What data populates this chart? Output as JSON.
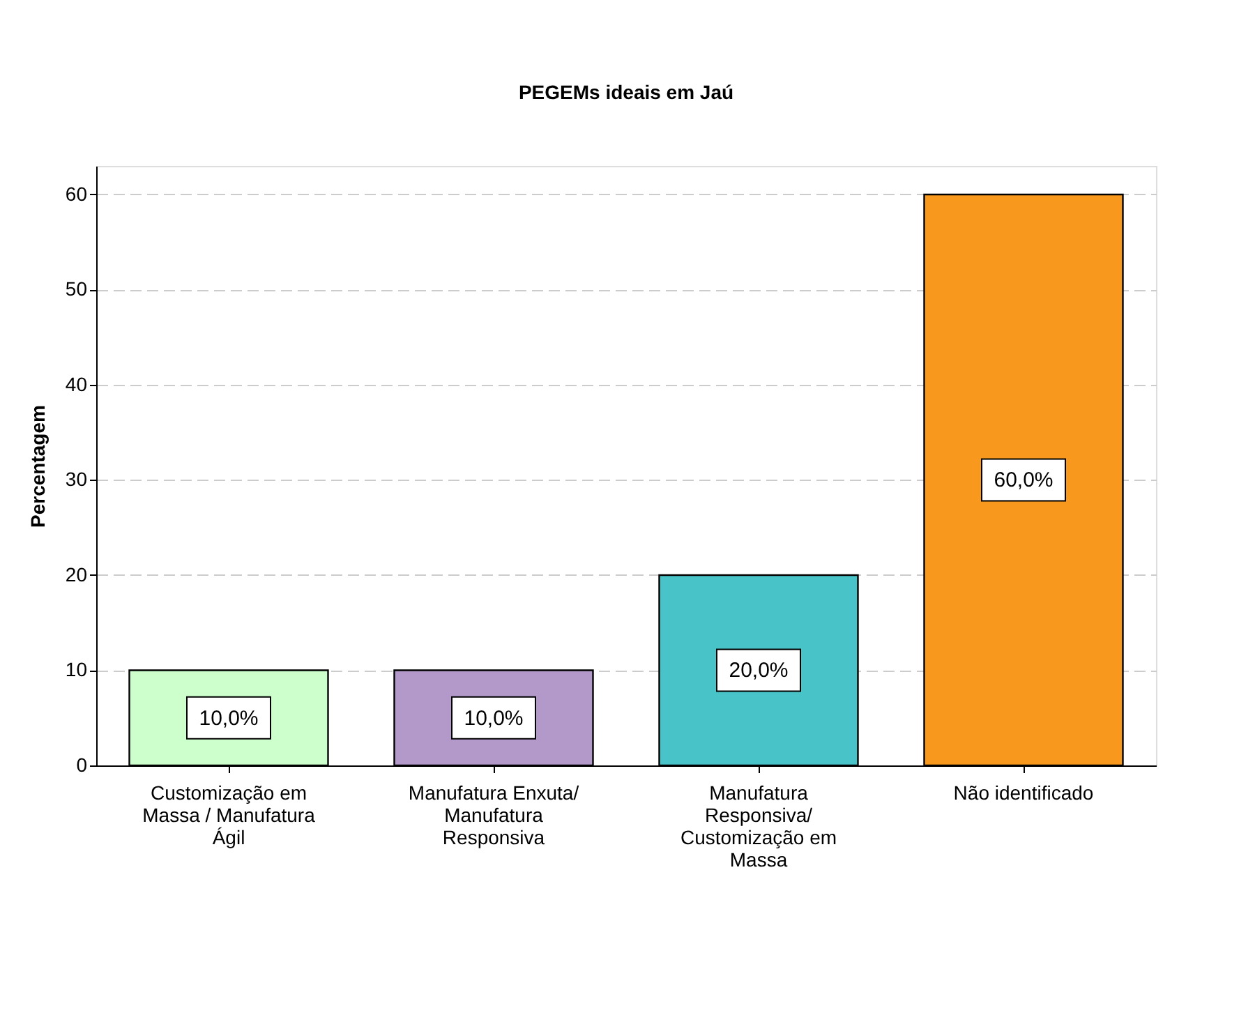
{
  "chart_data": {
    "type": "bar",
    "title": "PEGEMs ideais em Jaú",
    "ylabel": "Percentagem",
    "categories": [
      "Customização em Massa / Manufatura Ágil",
      "Manufatura Enxuta/ Manufatura Responsiva",
      "Manufatura Responsiva/ Customização em Massa",
      "Não identificado"
    ],
    "values": [
      10,
      10,
      20,
      60
    ],
    "colors": [
      "#ccffcc",
      "#b399c9",
      "#48c3c8",
      "#f8991d"
    ],
    "value_labels": [
      "10,0%",
      "10,0%",
      "20,0%",
      "60,0%"
    ],
    "ylim": [
      0,
      63
    ],
    "yticks": [
      0,
      10,
      20,
      30,
      40,
      50,
      60
    ],
    "grid": "y",
    "legend": false
  }
}
